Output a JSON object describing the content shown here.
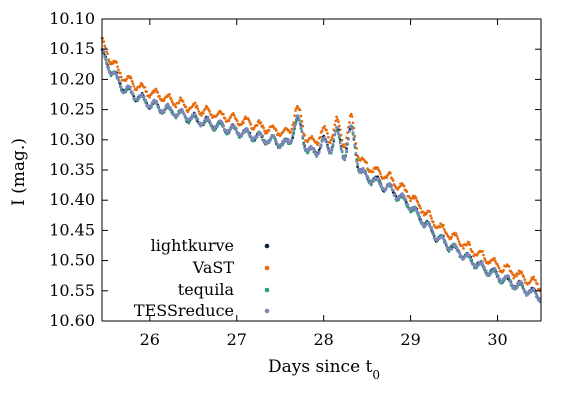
{
  "chart_data": {
    "type": "scatter",
    "title": "",
    "xlabel": "Days since t",
    "xlabel_sub": "0",
    "ylabel": "I (mag.)",
    "xlim": [
      25.45,
      30.5
    ],
    "ylim": [
      10.6,
      10.1
    ],
    "y_inverted": true,
    "grid": false,
    "legend_position": "bottom-left",
    "x_ticks": [
      "26",
      "27",
      "28",
      "29",
      "30"
    ],
    "y_ticks": [
      "10.10",
      "10.15",
      "10.20",
      "10.25",
      "10.30",
      "10.35",
      "10.40",
      "10.45",
      "10.50",
      "10.55",
      "10.60"
    ],
    "x_tick_values": [
      26,
      27,
      28,
      29,
      30
    ],
    "y_tick_values": [
      10.1,
      10.15,
      10.2,
      10.25,
      10.3,
      10.35,
      10.4,
      10.45,
      10.5,
      10.55,
      10.6
    ],
    "trend_points": [
      [
        25.45,
        10.155
      ],
      [
        25.55,
        10.185
      ],
      [
        25.7,
        10.215
      ],
      [
        26.0,
        10.24
      ],
      [
        26.5,
        10.265
      ],
      [
        27.0,
        10.285
      ],
      [
        27.5,
        10.305
      ],
      [
        27.85,
        10.32
      ],
      [
        28.2,
        10.335
      ],
      [
        28.55,
        10.365
      ],
      [
        28.8,
        10.385
      ],
      [
        29.0,
        10.41
      ],
      [
        29.3,
        10.46
      ],
      [
        29.7,
        10.5
      ],
      [
        30.0,
        10.525
      ],
      [
        30.5,
        10.56
      ]
    ],
    "bumps": [
      {
        "center": 27.7,
        "width": 0.07,
        "amplitude": 0.045
      },
      {
        "center": 28.0,
        "width": 0.06,
        "amplitude": 0.025
      },
      {
        "center": 28.15,
        "width": 0.06,
        "amplitude": 0.045
      },
      {
        "center": 28.32,
        "width": 0.06,
        "amplitude": 0.06
      }
    ],
    "oscillation": {
      "period": 0.15,
      "amplitude": 0.007
    },
    "series": [
      {
        "name": "lightkurve",
        "color": "#0b1f3b",
        "offset": 0.0
      },
      {
        "name": "VaST",
        "color": "#e66b0d",
        "offset": -0.018
      },
      {
        "name": "tequila",
        "color": "#2a9d70",
        "offset": 0.001
      },
      {
        "name": "TESSreduce",
        "color": "#7f85bd",
        "offset": 0.0
      }
    ]
  }
}
